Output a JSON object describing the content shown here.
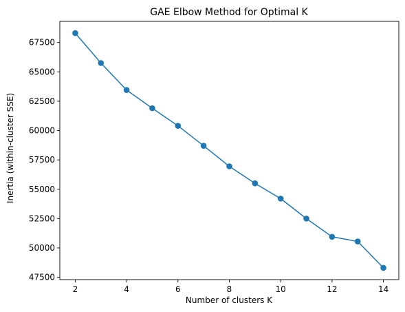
{
  "chart_data": {
    "type": "line",
    "title": "GAE Elbow Method for Optimal K",
    "xlabel": "Number of clusters K",
    "ylabel": "Inertia (within-cluster SSE)",
    "x": [
      2,
      3,
      4,
      5,
      6,
      7,
      8,
      9,
      10,
      11,
      12,
      13,
      14
    ],
    "series": [
      {
        "values": [
          68300,
          65750,
          63450,
          61900,
          60400,
          58700,
          56950,
          55500,
          54200,
          52500,
          50950,
          50550,
          48300
        ],
        "color": "#1f77b4",
        "marker": "circle"
      }
    ],
    "xlim": [
      1.4,
      14.6
    ],
    "ylim": [
      47300,
      69300
    ],
    "xticks": [
      2,
      4,
      6,
      8,
      10,
      12,
      14
    ],
    "yticks": [
      47500,
      50000,
      52500,
      55000,
      57500,
      60000,
      62500,
      65000,
      67500
    ],
    "grid": false,
    "legend": false
  }
}
